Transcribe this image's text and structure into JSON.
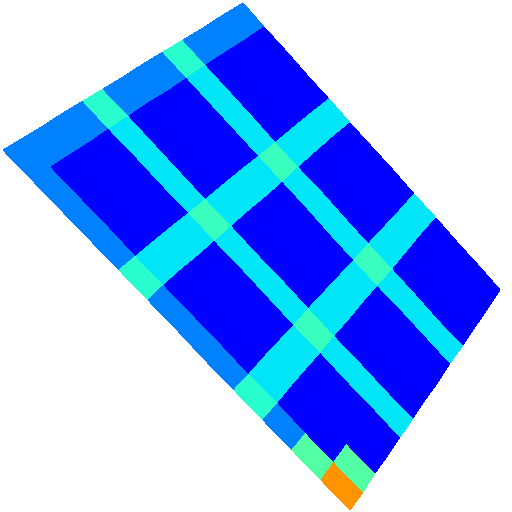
{
  "chart_data": {
    "type": "heatmap",
    "tick_labels": false,
    "color_range": [
      0,
      1
    ],
    "cells": [
      [
        0.25,
        0.25,
        0.25,
        0.25,
        0.4,
        0.25,
        0.25,
        0.25,
        0.4,
        0.25,
        0.25,
        0.25
      ],
      [
        0.25,
        0.12,
        0.12,
        0.12,
        0.35,
        0.12,
        0.12,
        0.12,
        0.35,
        0.12,
        0.12,
        0.12
      ],
      [
        0.25,
        0.12,
        0.12,
        0.12,
        0.35,
        0.12,
        0.12,
        0.12,
        0.35,
        0.12,
        0.12,
        0.12
      ],
      [
        0.25,
        0.12,
        0.12,
        0.12,
        0.35,
        0.12,
        0.12,
        0.12,
        0.35,
        0.12,
        0.12,
        0.12
      ],
      [
        0.4,
        0.35,
        0.35,
        0.35,
        0.42,
        0.35,
        0.35,
        0.35,
        0.42,
        0.35,
        0.35,
        0.35
      ],
      [
        0.25,
        0.12,
        0.12,
        0.12,
        0.35,
        0.12,
        0.12,
        0.12,
        0.35,
        0.12,
        0.12,
        0.12
      ],
      [
        0.25,
        0.12,
        0.12,
        0.12,
        0.35,
        0.12,
        0.12,
        0.12,
        0.35,
        0.12,
        0.12,
        0.12
      ],
      [
        0.25,
        0.12,
        0.12,
        0.12,
        0.35,
        0.12,
        0.12,
        0.12,
        0.35,
        0.12,
        0.12,
        0.12
      ],
      [
        0.4,
        0.35,
        0.35,
        0.35,
        0.42,
        0.35,
        0.35,
        0.35,
        0.42,
        0.35,
        0.35,
        0.35
      ],
      [
        0.25,
        0.12,
        0.12,
        0.12,
        0.35,
        0.12,
        0.12,
        0.12,
        0.35,
        0.12,
        0.12,
        0.12
      ],
      [
        0.45,
        0.12,
        0.12,
        0.12,
        0.35,
        0.12,
        0.12,
        0.12,
        0.35,
        0.12,
        0.12,
        0.12
      ],
      [
        0.75,
        0.45,
        0.12,
        0.12,
        0.35,
        0.12,
        0.12,
        0.12,
        0.35,
        0.12,
        0.12,
        0.12
      ]
    ]
  }
}
